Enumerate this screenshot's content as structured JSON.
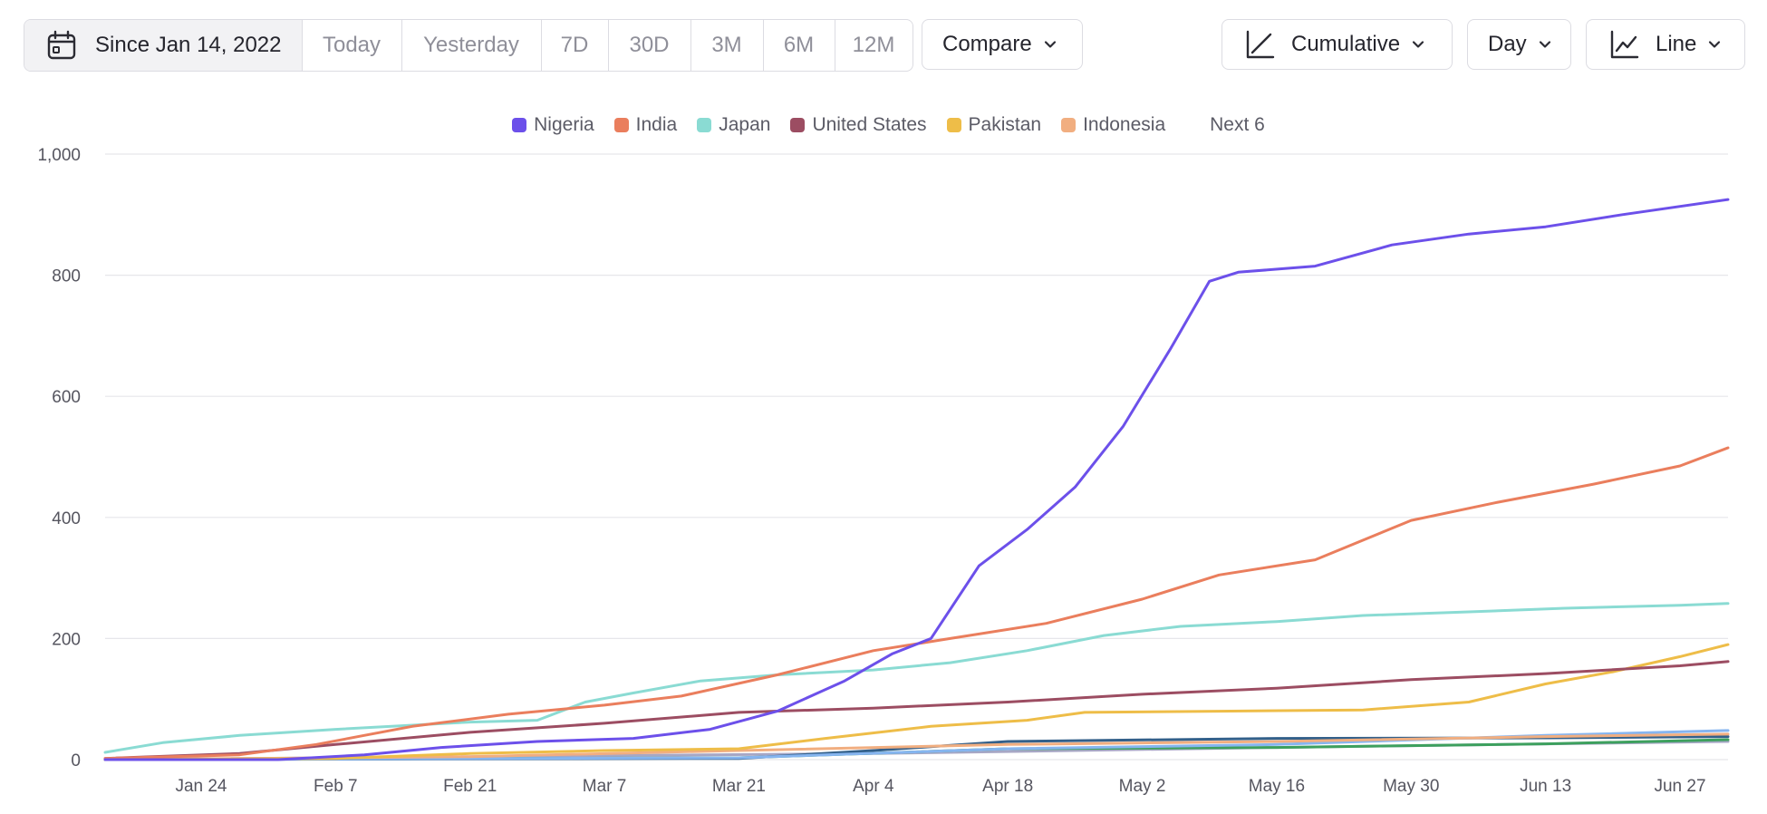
{
  "toolbar": {
    "date_range": "Since Jan 14, 2022",
    "presets": [
      "Today",
      "Yesterday",
      "7D",
      "30D",
      "3M",
      "6M",
      "12M"
    ],
    "compare_label": "Compare",
    "mode_label": "Cumulative",
    "interval_label": "Day",
    "chart_type_label": "Line"
  },
  "legend": {
    "next_label": "Next 6"
  },
  "colors": {
    "Nigeria": "#6c50ea",
    "India": "#ea7e5d",
    "Japan": "#8adbd3",
    "United States": "#9c4d62",
    "Pakistan": "#eebd48",
    "Indonesia": "#f1ae80"
  },
  "chart_data": {
    "type": "line",
    "title": "",
    "xlabel": "",
    "ylabel": "",
    "ylim": [
      0,
      1000
    ],
    "y_ticks": [
      0,
      200,
      400,
      600,
      800,
      1000
    ],
    "y_tick_labels": [
      "0",
      "200",
      "400",
      "600",
      "800",
      "1,000"
    ],
    "x_ticks": [
      "2022-01-24",
      "2022-02-07",
      "2022-02-21",
      "2022-03-07",
      "2022-03-21",
      "2022-04-04",
      "2022-04-18",
      "2022-05-02",
      "2022-05-16",
      "2022-05-30",
      "2022-06-13",
      "2022-06-27"
    ],
    "x_tick_labels": [
      "Jan 24",
      "Feb 7",
      "Feb 21",
      "Mar 7",
      "Mar 21",
      "Apr 4",
      "Apr 18",
      "May 2",
      "May 16",
      "May 30",
      "Jun 13",
      "Jun 27"
    ],
    "xlim": [
      "2022-01-14",
      "2022-07-02"
    ],
    "grid": true,
    "legend_position": "top-center",
    "series": [
      {
        "name": "Nigeria",
        "color": "#6c50ea",
        "points": [
          [
            "2022-01-14",
            0
          ],
          [
            "2022-02-01",
            0
          ],
          [
            "2022-02-10",
            8
          ],
          [
            "2022-02-18",
            20
          ],
          [
            "2022-02-28",
            30
          ],
          [
            "2022-03-10",
            35
          ],
          [
            "2022-03-18",
            50
          ],
          [
            "2022-03-25",
            80
          ],
          [
            "2022-04-01",
            130
          ],
          [
            "2022-04-06",
            175
          ],
          [
            "2022-04-10",
            200
          ],
          [
            "2022-04-15",
            320
          ],
          [
            "2022-04-20",
            380
          ],
          [
            "2022-04-25",
            450
          ],
          [
            "2022-04-30",
            550
          ],
          [
            "2022-05-05",
            680
          ],
          [
            "2022-05-09",
            790
          ],
          [
            "2022-05-12",
            805
          ],
          [
            "2022-05-20",
            815
          ],
          [
            "2022-05-28",
            850
          ],
          [
            "2022-06-05",
            868
          ],
          [
            "2022-06-13",
            880
          ],
          [
            "2022-06-21",
            900
          ],
          [
            "2022-07-02",
            925
          ]
        ]
      },
      {
        "name": "India",
        "color": "#ea7e5d",
        "points": [
          [
            "2022-01-14",
            2
          ],
          [
            "2022-01-28",
            8
          ],
          [
            "2022-02-05",
            25
          ],
          [
            "2022-02-15",
            55
          ],
          [
            "2022-02-25",
            75
          ],
          [
            "2022-03-07",
            90
          ],
          [
            "2022-03-15",
            105
          ],
          [
            "2022-03-25",
            140
          ],
          [
            "2022-04-04",
            180
          ],
          [
            "2022-04-12",
            200
          ],
          [
            "2022-04-22",
            225
          ],
          [
            "2022-05-02",
            265
          ],
          [
            "2022-05-10",
            305
          ],
          [
            "2022-05-20",
            330
          ],
          [
            "2022-05-30",
            395
          ],
          [
            "2022-06-08",
            425
          ],
          [
            "2022-06-18",
            455
          ],
          [
            "2022-06-27",
            485
          ],
          [
            "2022-07-02",
            515
          ]
        ]
      },
      {
        "name": "Japan",
        "color": "#8adbd3",
        "points": [
          [
            "2022-01-14",
            12
          ],
          [
            "2022-01-20",
            28
          ],
          [
            "2022-01-28",
            40
          ],
          [
            "2022-02-07",
            50
          ],
          [
            "2022-02-21",
            62
          ],
          [
            "2022-02-28",
            65
          ],
          [
            "2022-03-05",
            95
          ],
          [
            "2022-03-10",
            110
          ],
          [
            "2022-03-17",
            130
          ],
          [
            "2022-03-25",
            140
          ],
          [
            "2022-04-04",
            148
          ],
          [
            "2022-04-12",
            160
          ],
          [
            "2022-04-20",
            180
          ],
          [
            "2022-04-28",
            205
          ],
          [
            "2022-05-06",
            220
          ],
          [
            "2022-05-16",
            228
          ],
          [
            "2022-05-25",
            238
          ],
          [
            "2022-06-05",
            244
          ],
          [
            "2022-06-15",
            250
          ],
          [
            "2022-06-27",
            255
          ],
          [
            "2022-07-02",
            258
          ]
        ]
      },
      {
        "name": "United States",
        "color": "#9c4d62",
        "points": [
          [
            "2022-01-14",
            2
          ],
          [
            "2022-01-28",
            10
          ],
          [
            "2022-02-07",
            25
          ],
          [
            "2022-02-21",
            45
          ],
          [
            "2022-03-07",
            60
          ],
          [
            "2022-03-21",
            78
          ],
          [
            "2022-04-04",
            85
          ],
          [
            "2022-04-18",
            95
          ],
          [
            "2022-05-02",
            108
          ],
          [
            "2022-05-16",
            118
          ],
          [
            "2022-05-30",
            132
          ],
          [
            "2022-06-13",
            142
          ],
          [
            "2022-06-27",
            155
          ],
          [
            "2022-07-02",
            162
          ]
        ]
      },
      {
        "name": "Pakistan",
        "color": "#eebd48",
        "points": [
          [
            "2022-01-14",
            0
          ],
          [
            "2022-02-07",
            2
          ],
          [
            "2022-02-21",
            10
          ],
          [
            "2022-03-07",
            15
          ],
          [
            "2022-03-21",
            18
          ],
          [
            "2022-03-30",
            35
          ],
          [
            "2022-04-10",
            55
          ],
          [
            "2022-04-20",
            65
          ],
          [
            "2022-04-26",
            78
          ],
          [
            "2022-05-10",
            80
          ],
          [
            "2022-05-25",
            82
          ],
          [
            "2022-06-05",
            95
          ],
          [
            "2022-06-13",
            125
          ],
          [
            "2022-06-20",
            145
          ],
          [
            "2022-06-27",
            170
          ],
          [
            "2022-07-02",
            190
          ]
        ]
      },
      {
        "name": "Indonesia",
        "color": "#f1ae80",
        "points": [
          [
            "2022-01-14",
            0
          ],
          [
            "2022-02-21",
            5
          ],
          [
            "2022-03-21",
            15
          ],
          [
            "2022-04-18",
            25
          ],
          [
            "2022-05-16",
            30
          ],
          [
            "2022-06-13",
            38
          ],
          [
            "2022-07-02",
            42
          ]
        ]
      },
      {
        "name": "",
        "color": "#86b5f0",
        "points": [
          [
            "2022-01-14",
            0
          ],
          [
            "2022-03-21",
            3
          ],
          [
            "2022-04-18",
            18
          ],
          [
            "2022-05-16",
            25
          ],
          [
            "2022-06-13",
            40
          ],
          [
            "2022-07-02",
            48
          ]
        ]
      },
      {
        "name": "",
        "color": "#33608a",
        "points": [
          [
            "2022-01-14",
            0
          ],
          [
            "2022-03-21",
            2
          ],
          [
            "2022-04-04",
            15
          ],
          [
            "2022-04-18",
            30
          ],
          [
            "2022-05-16",
            35
          ],
          [
            "2022-06-13",
            36
          ],
          [
            "2022-07-02",
            38
          ]
        ]
      },
      {
        "name": "",
        "color": "#3da05e",
        "points": [
          [
            "2022-01-14",
            0
          ],
          [
            "2022-03-21",
            3
          ],
          [
            "2022-04-18",
            18
          ],
          [
            "2022-05-16",
            20
          ],
          [
            "2022-06-13",
            26
          ],
          [
            "2022-07-02",
            33
          ]
        ]
      },
      {
        "name": "",
        "color": "#a7a7c5",
        "points": [
          [
            "2022-01-14",
            0
          ],
          [
            "2022-04-04",
            10
          ],
          [
            "2022-05-16",
            20
          ],
          [
            "2022-07-02",
            30
          ]
        ]
      }
    ]
  }
}
